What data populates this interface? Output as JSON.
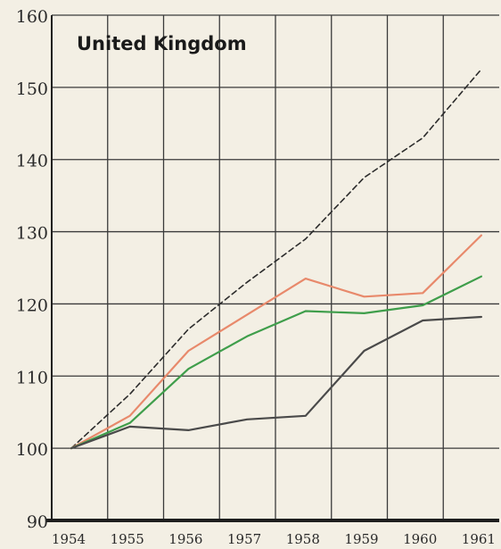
{
  "chart_data": {
    "type": "line",
    "title": "United Kingdom",
    "xlabel": "",
    "ylabel": "",
    "x": [
      "1954",
      "1955",
      "1956",
      "1957",
      "1958",
      "1959",
      "1960",
      "1961"
    ],
    "ylim": [
      90,
      160
    ],
    "yticks": [
      "90",
      "100",
      "110",
      "120",
      "130",
      "140",
      "150",
      "160"
    ],
    "grid": true,
    "series": [
      {
        "color": "#2c2c2c",
        "style": "dashed",
        "values": [
          100,
          107.5,
          116.5,
          123,
          129,
          137.5,
          143,
          152.5
        ]
      },
      {
        "color": "#e8896b",
        "style": "solid",
        "values": [
          100,
          104.5,
          113.5,
          118.5,
          123.5,
          121,
          121.5,
          129.5
        ]
      },
      {
        "color": "#3f9e4b",
        "style": "solid",
        "values": [
          100,
          103.5,
          111,
          115.5,
          119,
          118.7,
          119.8,
          123.8
        ]
      },
      {
        "color": "#4a4a4a",
        "style": "solid",
        "values": [
          100,
          103,
          102.5,
          104,
          104.5,
          113.5,
          117.7,
          118.2
        ]
      }
    ]
  }
}
